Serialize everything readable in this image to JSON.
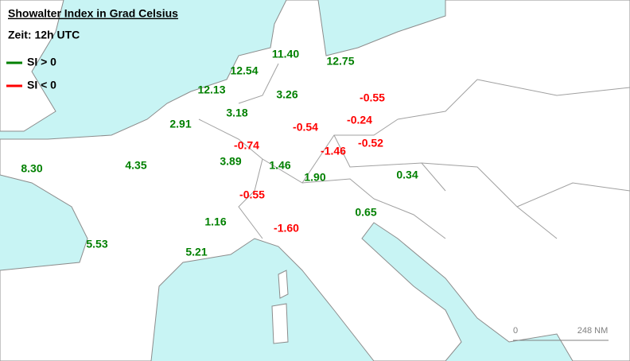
{
  "header": {
    "title": "Showalter Index in Grad Celsius",
    "subtitle": "Zeit: 12h UTC"
  },
  "legend": [
    {
      "label": "SI > 0",
      "color": "#008000"
    },
    {
      "label": "SI < 0",
      "color": "#ff0000"
    }
  ],
  "stations": [
    {
      "value": 11.4,
      "label": "11.40"
    },
    {
      "value": 12.75,
      "label": "12.75"
    },
    {
      "value": 12.54,
      "label": "12.54"
    },
    {
      "value": 12.13,
      "label": "12.13"
    },
    {
      "value": 3.26,
      "label": "3.26"
    },
    {
      "value": -0.55,
      "label": "-0.55"
    },
    {
      "value": 3.18,
      "label": "3.18"
    },
    {
      "value": -0.24,
      "label": "-0.24"
    },
    {
      "value": 2.91,
      "label": "2.91"
    },
    {
      "value": -0.54,
      "label": "-0.54"
    },
    {
      "value": -0.74,
      "label": "-0.74"
    },
    {
      "value": -0.52,
      "label": "-0.52"
    },
    {
      "value": -1.46,
      "label": "-1.46"
    },
    {
      "value": 8.3,
      "label": "8.30"
    },
    {
      "value": 4.35,
      "label": "4.35"
    },
    {
      "value": 3.89,
      "label": "3.89"
    },
    {
      "value": 1.46,
      "label": "1.46"
    },
    {
      "value": 1.9,
      "label": "1.90"
    },
    {
      "value": 0.34,
      "label": "0.34"
    },
    {
      "value": -0.55,
      "label": "-0.55"
    },
    {
      "value": 0.65,
      "label": "0.65"
    },
    {
      "value": 1.16,
      "label": "1.16"
    },
    {
      "value": -1.6,
      "label": "-1.60"
    },
    {
      "value": 5.53,
      "label": "5.53"
    },
    {
      "value": 5.21,
      "label": "5.21"
    }
  ],
  "scale_bar": {
    "start": "0",
    "end": "248 NM"
  }
}
